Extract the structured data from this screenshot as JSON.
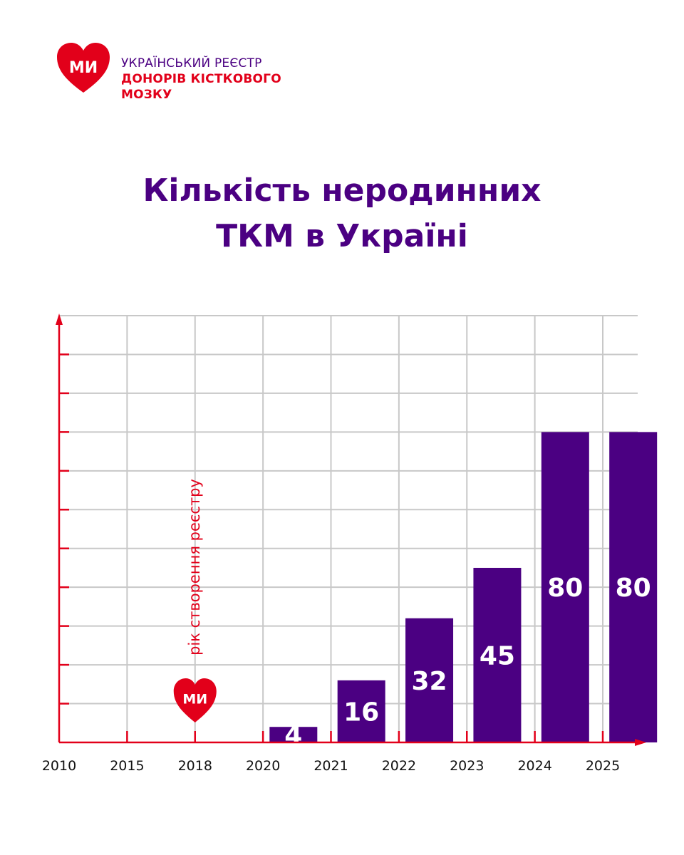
{
  "brand": {
    "line1": "УКРАЇНСЬКИЙ РЕЄСТР",
    "line2": "ДОНОРІВ КІСТКОВОГО",
    "line3": "МОЗКУ",
    "heart_text": "МИ"
  },
  "colors": {
    "purple": "#4b0082",
    "red": "#e2001a",
    "grid": "#c8c8c8"
  },
  "chart_data": {
    "type": "bar",
    "title_lines": [
      "Кількість неродинних",
      "ТКМ в Україні"
    ],
    "categories": [
      "2010",
      "2015",
      "2018",
      "2020",
      "2021",
      "2022",
      "2023",
      "2024",
      "2025"
    ],
    "values": [
      null,
      null,
      null,
      4,
      16,
      32,
      45,
      80,
      80
    ],
    "data_labels": [
      "",
      "",
      "",
      "4",
      "16",
      "32",
      "45",
      "80",
      "80"
    ],
    "annotation": {
      "category": "2018",
      "text": "рік створення реєстру"
    },
    "grid": true,
    "ylim": [
      0,
      110
    ]
  }
}
